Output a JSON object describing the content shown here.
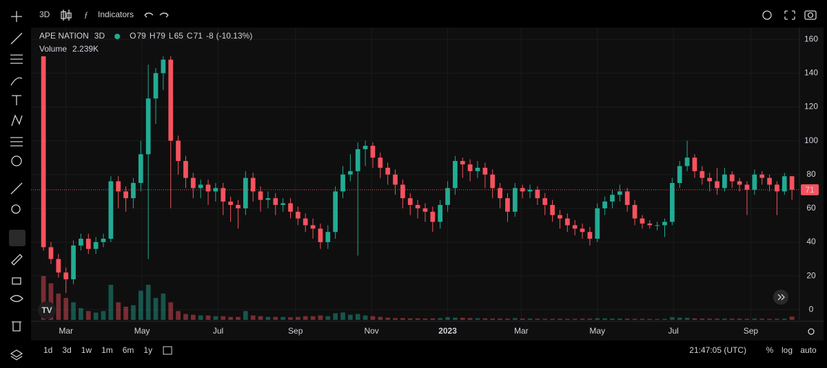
{
  "toolbar": {
    "interval": "3D",
    "indicators": "Indicators",
    "ranges": [
      "1d",
      "3d",
      "1w",
      "1m",
      "6m",
      "1y"
    ],
    "time": "21:47:05 (UTC)",
    "options": [
      "%",
      "log",
      "auto"
    ]
  },
  "chart_data": {
    "type": "candlestick",
    "symbol": "APE NATION",
    "interval": "3D",
    "ohlc_labels": [
      "O",
      "H",
      "L",
      "C"
    ],
    "change": -8,
    "change_percent": {
      "value": -10.13,
      "label": "(-10.13%)"
    },
    "volume_title": "Volume",
    "last_volume_label": "2.239K",
    "up_color": "#22ab94",
    "down_color": "#f7525f",
    "grid": true,
    "xlim": [
      -28,
      588
    ],
    "xticks": [
      {
        "value": 0,
        "label": "Mar"
      },
      {
        "value": 61,
        "label": "May"
      },
      {
        "value": 122,
        "label": "Jul"
      },
      {
        "value": 184,
        "label": "Sep"
      },
      {
        "value": 245,
        "label": "Nov"
      },
      {
        "value": 306,
        "label": "2023"
      },
      {
        "value": 365,
        "label": "Mar"
      },
      {
        "value": 426,
        "label": "May"
      },
      {
        "value": 487,
        "label": "Jul"
      },
      {
        "value": 549,
        "label": "Sep"
      }
    ],
    "ylim": [
      -6,
      167
    ],
    "yticks": [
      0,
      20,
      40,
      60,
      80,
      100,
      120,
      140,
      160
    ],
    "volume_lim": [
      0,
      200000
    ],
    "x": [
      -18,
      -12,
      -6,
      0,
      6,
      12,
      18,
      24,
      30,
      36,
      42,
      48,
      54,
      60,
      66,
      72,
      78,
      84,
      90,
      96,
      102,
      108,
      114,
      120,
      126,
      132,
      138,
      144,
      150,
      156,
      162,
      168,
      174,
      180,
      186,
      192,
      198,
      204,
      210,
      216,
      222,
      228,
      234,
      240,
      246,
      252,
      258,
      264,
      270,
      276,
      282,
      288,
      294,
      300,
      306,
      312,
      318,
      324,
      330,
      336,
      342,
      348,
      354,
      360,
      366,
      372,
      378,
      384,
      390,
      396,
      402,
      408,
      414,
      420,
      426,
      432,
      438,
      444,
      450,
      456,
      462,
      468,
      474,
      480,
      486,
      492,
      498,
      504,
      510,
      516,
      522,
      528,
      534,
      540,
      546,
      552,
      558,
      564,
      570,
      576,
      582
    ],
    "open": [
      150,
      37,
      30,
      22,
      18,
      38,
      42,
      36,
      40,
      42,
      76,
      70,
      66,
      75,
      92,
      125,
      140,
      148,
      100,
      88,
      78,
      72,
      74,
      70,
      72,
      64,
      62,
      60,
      78,
      70,
      65,
      66,
      62,
      63,
      58,
      54,
      50,
      48,
      40,
      46,
      70,
      80,
      82,
      95,
      97,
      90,
      84,
      80,
      74,
      66,
      62,
      60,
      58,
      52,
      62,
      72,
      88,
      86,
      82,
      84,
      80,
      72,
      66,
      58,
      72,
      70,
      71,
      66,
      62,
      56,
      54,
      50,
      48,
      46,
      42,
      60,
      64,
      68,
      70,
      62,
      54,
      51,
      50,
      50,
      52,
      75,
      85,
      90,
      82,
      78,
      76,
      72,
      80,
      76,
      74,
      71,
      80,
      78,
      74,
      70,
      79
    ],
    "high": [
      150,
      40,
      33,
      25,
      41,
      45,
      45,
      43,
      45,
      79,
      79,
      73,
      78,
      100,
      145,
      143,
      150,
      150,
      103,
      91,
      81,
      77,
      77,
      75,
      75,
      67,
      65,
      82,
      81,
      73,
      70,
      69,
      66,
      66,
      61,
      57,
      54,
      51,
      50,
      73,
      85,
      92,
      99,
      100,
      99,
      93,
      87,
      83,
      77,
      69,
      65,
      63,
      61,
      65,
      76,
      91,
      90,
      89,
      88,
      87,
      83,
      75,
      69,
      75,
      74,
      74,
      73,
      69,
      65,
      59,
      57,
      53,
      51,
      49,
      63,
      67,
      71,
      74,
      72,
      65,
      56,
      53,
      52,
      54,
      78,
      88,
      100,
      92,
      85,
      81,
      84,
      84,
      82,
      78,
      76,
      83,
      82,
      80,
      76,
      81,
      79
    ],
    "low": [
      35,
      27,
      19,
      10,
      15,
      35,
      33,
      33,
      37,
      40,
      60,
      58,
      60,
      70,
      30,
      110,
      130,
      60,
      80,
      72,
      66,
      66,
      62,
      64,
      56,
      52,
      48,
      56,
      64,
      58,
      60,
      56,
      58,
      54,
      50,
      46,
      42,
      36,
      36,
      42,
      66,
      76,
      32,
      85,
      84,
      78,
      74,
      68,
      60,
      56,
      54,
      52,
      46,
      48,
      58,
      68,
      78,
      76,
      78,
      72,
      66,
      60,
      52,
      55,
      66,
      66,
      62,
      56,
      52,
      48,
      46,
      44,
      42,
      38,
      40,
      56,
      60,
      64,
      58,
      50,
      48,
      48,
      47,
      43,
      50,
      72,
      82,
      78,
      74,
      70,
      68,
      70,
      72,
      70,
      56,
      68,
      74,
      70,
      56,
      68,
      65
    ],
    "close": [
      37,
      30,
      22,
      18,
      38,
      42,
      36,
      40,
      42,
      76,
      70,
      66,
      75,
      92,
      125,
      140,
      148,
      100,
      88,
      78,
      72,
      74,
      70,
      72,
      64,
      62,
      60,
      78,
      70,
      65,
      66,
      62,
      63,
      58,
      54,
      50,
      48,
      40,
      46,
      70,
      80,
      82,
      95,
      97,
      90,
      84,
      80,
      74,
      66,
      62,
      60,
      58,
      52,
      62,
      72,
      88,
      86,
      82,
      84,
      80,
      72,
      66,
      58,
      72,
      70,
      71,
      66,
      62,
      56,
      54,
      50,
      48,
      46,
      42,
      60,
      64,
      68,
      70,
      62,
      54,
      51,
      50,
      50,
      52,
      75,
      85,
      90,
      82,
      78,
      76,
      72,
      80,
      76,
      74,
      71,
      80,
      78,
      74,
      70,
      79,
      71
    ],
    "volume": [
      30000,
      25000,
      18000,
      15000,
      12000,
      8000,
      6000,
      5000,
      6000,
      24000,
      12000,
      9000,
      10000,
      20000,
      24000,
      15000,
      18000,
      12000,
      6000,
      4000,
      3500,
      3000,
      3000,
      2500,
      2500,
      2000,
      2000,
      6000,
      3000,
      2500,
      2000,
      2000,
      2000,
      1800,
      2000,
      2500,
      2500,
      3000,
      2500,
      4500,
      5000,
      3500,
      4000,
      3000,
      2500,
      2000,
      1500,
      1200,
      1200,
      1000,
      1000,
      900,
      1000,
      1200,
      1800,
      1500,
      1400,
      1200,
      1100,
      1000,
      900,
      900,
      800,
      1200,
      900,
      900,
      800,
      700,
      700,
      800,
      700,
      700,
      800,
      800,
      1100,
      1000,
      900,
      900,
      800,
      700,
      700,
      600,
      600,
      700,
      1800,
      1500,
      1400,
      1000,
      900,
      800,
      800,
      900,
      800,
      800,
      700,
      900,
      800,
      700,
      700,
      800,
      2239
    ]
  }
}
